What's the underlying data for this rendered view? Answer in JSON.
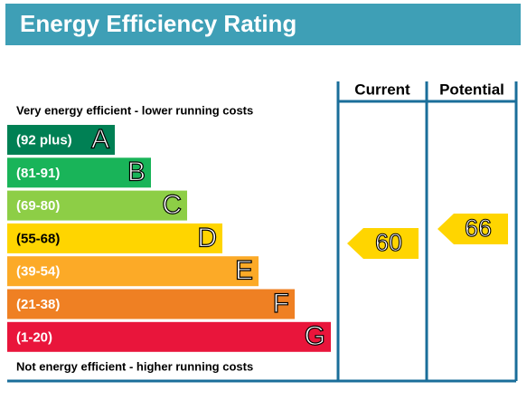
{
  "title": "Energy Efficiency Rating",
  "top_note": "Very energy efficient - lower running costs",
  "bottom_note": "Not energy efficient - higher running costs",
  "columns": [
    "Current",
    "Potential"
  ],
  "bands": [
    {
      "range": "(92 plus)",
      "letter": "A"
    },
    {
      "range": "(81-91)",
      "letter": "B"
    },
    {
      "range": "(69-80)",
      "letter": "C"
    },
    {
      "range": "(55-68)",
      "letter": "D"
    },
    {
      "range": "(39-54)",
      "letter": "E"
    },
    {
      "range": "(21-38)",
      "letter": "F"
    },
    {
      "range": "(1-20)",
      "letter": "G"
    }
  ],
  "current": 60,
  "potential": 66
}
